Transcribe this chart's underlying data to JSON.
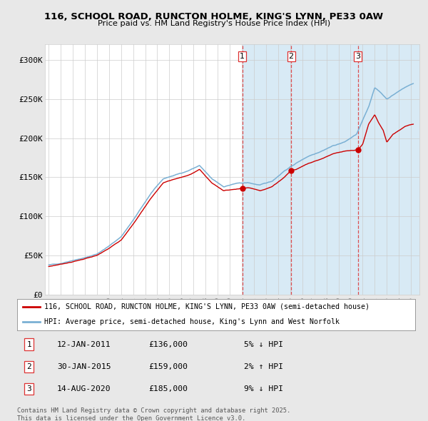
{
  "title": "116, SCHOOL ROAD, RUNCTON HOLME, KING'S LYNN, PE33 0AW",
  "subtitle": "Price paid vs. HM Land Registry's House Price Index (HPI)",
  "background_color": "#e8e8e8",
  "plot_bg_color": "#ffffff",
  "sale_info": [
    {
      "label": "1",
      "date": "12-JAN-2011",
      "price": "£136,000",
      "pct": "5% ↓ HPI"
    },
    {
      "label": "2",
      "date": "30-JAN-2015",
      "price": "£159,000",
      "pct": "2% ↑ HPI"
    },
    {
      "label": "3",
      "date": "14-AUG-2020",
      "price": "£185,000",
      "pct": "9% ↓ HPI"
    }
  ],
  "sale_dates_float": [
    2011.04,
    2015.08,
    2020.62
  ],
  "legend_line1": "116, SCHOOL ROAD, RUNCTON HOLME, KING'S LYNN, PE33 0AW (semi-detached house)",
  "legend_line2": "HPI: Average price, semi-detached house, King's Lynn and West Norfolk",
  "footer1": "Contains HM Land Registry data © Crown copyright and database right 2025.",
  "footer2": "This data is licensed under the Open Government Licence v3.0.",
  "hpi_color": "#7ab0d4",
  "price_color": "#cc0000",
  "shade_color": "#d8eaf5",
  "vline_color": "#dd3333",
  "grid_color": "#cccccc",
  "ylim": [
    0,
    320000
  ],
  "yticks": [
    0,
    50000,
    100000,
    150000,
    200000,
    250000,
    300000
  ],
  "ytick_labels": [
    "£0",
    "£50K",
    "£100K",
    "£150K",
    "£200K",
    "£250K",
    "£300K"
  ],
  "xmin": 1994.7,
  "xmax": 2025.7,
  "figwidth": 6.0,
  "figheight": 5.9,
  "dpi": 100
}
